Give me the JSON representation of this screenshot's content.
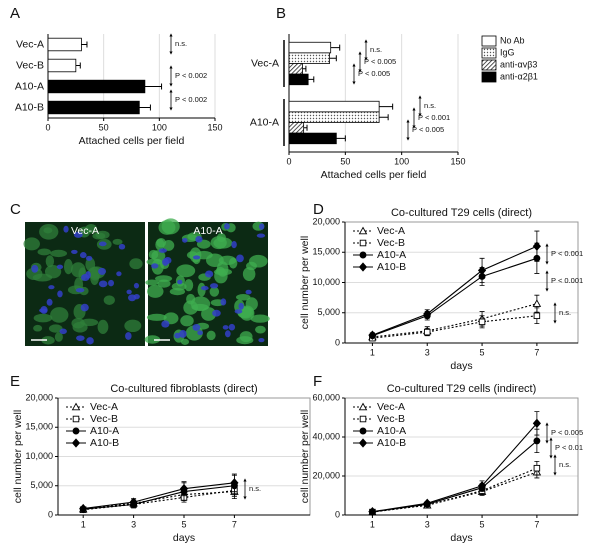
{
  "chart_data": [
    {
      "type": "bar",
      "panel": "A",
      "orientation": "horizontal",
      "categories": [
        "Vec-A",
        "Vec-B",
        "A10-A",
        "A10-B"
      ],
      "values": [
        30,
        25,
        87,
        82
      ],
      "errors": [
        5,
        4,
        15,
        10
      ],
      "colors": [
        "#ffffff",
        "#ffffff",
        "#000000",
        "#000000"
      ],
      "xlim": [
        0,
        150
      ],
      "xticks": [
        0,
        50,
        100,
        150
      ],
      "grid": true,
      "xlabel": "Attached cells per field",
      "annotations": [
        "n.s.",
        "P < 0.002",
        "P < 0.002"
      ]
    },
    {
      "type": "bar",
      "panel": "B",
      "orientation": "horizontal",
      "categories": [
        "Vec-A",
        "A10-A"
      ],
      "series": [
        {
          "name": "No Ab",
          "color": "#ffffff",
          "values": [
            37,
            80
          ],
          "errors": [
            8,
            12
          ]
        },
        {
          "name": "IgG",
          "color": "#ffffff",
          "pattern": "dots",
          "values": [
            36,
            80
          ],
          "errors": [
            6,
            8
          ]
        },
        {
          "name": "anti-αvβ3",
          "color": "#ffffff",
          "pattern": "hatch",
          "values": [
            12,
            13
          ],
          "errors": [
            3,
            3
          ]
        },
        {
          "name": "anti-α2β1",
          "color": "#000000",
          "values": [
            17,
            42
          ],
          "errors": [
            5,
            8
          ]
        }
      ],
      "xlim": [
        0,
        150
      ],
      "xticks": [
        0,
        50,
        100,
        150
      ],
      "grid": true,
      "xlabel": "Attached cells per field",
      "annotations": [
        "n.s.",
        "P < 0.005",
        "P < 0.005",
        "n.s.",
        "P < 0.001",
        "P < 0.005"
      ]
    },
    {
      "type": "image",
      "panel": "C",
      "labels": [
        "Vec-A",
        "A10-A"
      ]
    },
    {
      "type": "line",
      "panel": "D",
      "title": "Co-cultured T29 cells (direct)",
      "x": [
        1,
        3,
        5,
        7
      ],
      "xlim": [
        0,
        8.5
      ],
      "xticks": [
        1,
        3,
        5,
        7
      ],
      "ylim": [
        0,
        20000
      ],
      "yticks": [
        0,
        {
          "value": 5000,
          "label": "5,000"
        },
        {
          "value": 10000,
          "label": "10,000"
        },
        {
          "value": 15000,
          "label": "15,000"
        },
        {
          "value": 20000,
          "label": "20,000"
        }
      ],
      "xlabel": "days",
      "ylabel": "cell number per well",
      "grid": true,
      "series": [
        {
          "name": "Vec-A",
          "color": "#000000",
          "marker": "triangle",
          "line_style": "dotted",
          "values": [
            1000,
            2000,
            4000,
            6500
          ],
          "errors": [
            300,
            700,
            1200,
            1400
          ]
        },
        {
          "name": "Vec-B",
          "color": "#000000",
          "marker": "square",
          "line_style": "dotted",
          "values": [
            800,
            1800,
            3500,
            4500
          ],
          "errors": [
            300,
            600,
            1000,
            1300
          ]
        },
        {
          "name": "A10-A",
          "color": "#000000",
          "marker": "circle",
          "line_style": "solid",
          "values": [
            1200,
            4500,
            11000,
            14000
          ],
          "errors": [
            400,
            700,
            1500,
            2500
          ]
        },
        {
          "name": "A10-B",
          "color": "#000000",
          "marker": "diamond",
          "line_style": "solid",
          "values": [
            1300,
            4800,
            12000,
            16000
          ],
          "errors": [
            400,
            700,
            2000,
            2500
          ]
        }
      ],
      "annotations": [
        "P < 0.001",
        "P < 0.001",
        "n.s."
      ]
    },
    {
      "type": "line",
      "panel": "E",
      "title": "Co-cultured fibroblasts (direct)",
      "x": [
        1,
        3,
        5,
        7
      ],
      "xlim": [
        0,
        10
      ],
      "xticks": [
        1,
        3,
        5,
        7
      ],
      "ylim": [
        0,
        20000
      ],
      "yticks": [
        0,
        {
          "value": 5000,
          "label": "5,000"
        },
        {
          "value": 10000,
          "label": "10,000"
        },
        {
          "value": 15000,
          "label": "15,000"
        },
        {
          "value": 20000,
          "label": "20,000"
        }
      ],
      "xlabel": "days",
      "ylabel": "cell number per well",
      "grid": true,
      "series": [
        {
          "name": "Vec-A",
          "color": "#000000",
          "marker": "triangle",
          "line_style": "dotted",
          "values": [
            1000,
            2000,
            3500,
            4000
          ],
          "errors": [
            300,
            600,
            1000,
            1200
          ]
        },
        {
          "name": "Vec-B",
          "color": "#000000",
          "marker": "square",
          "line_style": "dotted",
          "values": [
            900,
            1800,
            3000,
            4200
          ],
          "errors": [
            300,
            600,
            800,
            1000
          ]
        },
        {
          "name": "A10-A",
          "color": "#000000",
          "marker": "circle",
          "line_style": "solid",
          "values": [
            1000,
            1800,
            4000,
            5000
          ],
          "errors": [
            300,
            500,
            1500,
            1800
          ]
        },
        {
          "name": "A10-B",
          "color": "#000000",
          "marker": "diamond",
          "line_style": "solid",
          "values": [
            1100,
            2200,
            4500,
            5500
          ],
          "errors": [
            300,
            600,
            1200,
            1500
          ]
        }
      ],
      "annotations": [
        "n.s."
      ]
    },
    {
      "type": "line",
      "panel": "F",
      "title": "Co-cultured T29 cells (indirect)",
      "x": [
        1,
        3,
        5,
        7
      ],
      "xlim": [
        0,
        8.5
      ],
      "xticks": [
        1,
        3,
        5,
        7
      ],
      "ylim": [
        0,
        60000
      ],
      "yticks": [
        0,
        {
          "value": 20000,
          "label": "20,000"
        },
        {
          "value": 40000,
          "label": "40,000"
        },
        {
          "value": 60000,
          "label": "60,000"
        }
      ],
      "xlabel": "days",
      "ylabel": "cell number per well",
      "grid": true,
      "series": [
        {
          "name": "Vec-A",
          "color": "#000000",
          "marker": "triangle",
          "line_style": "dotted",
          "values": [
            1500,
            5000,
            12000,
            22000
          ],
          "errors": [
            500,
            1000,
            2000,
            3000
          ]
        },
        {
          "name": "Vec-B",
          "color": "#000000",
          "marker": "square",
          "line_style": "dotted",
          "values": [
            1500,
            5000,
            12500,
            24000
          ],
          "errors": [
            500,
            1000,
            2000,
            3500
          ]
        },
        {
          "name": "A10-A",
          "color": "#000000",
          "marker": "circle",
          "line_style": "solid",
          "values": [
            1600,
            5500,
            14000,
            38000
          ],
          "errors": [
            600,
            1000,
            2000,
            6000
          ]
        },
        {
          "name": "A10-B",
          "color": "#000000",
          "marker": "diamond",
          "line_style": "solid",
          "values": [
            1700,
            6000,
            15000,
            47000
          ],
          "errors": [
            600,
            1000,
            2500,
            6000
          ]
        }
      ],
      "annotations": [
        "P < 0.005",
        "P < 0.01",
        "n.s."
      ]
    }
  ]
}
